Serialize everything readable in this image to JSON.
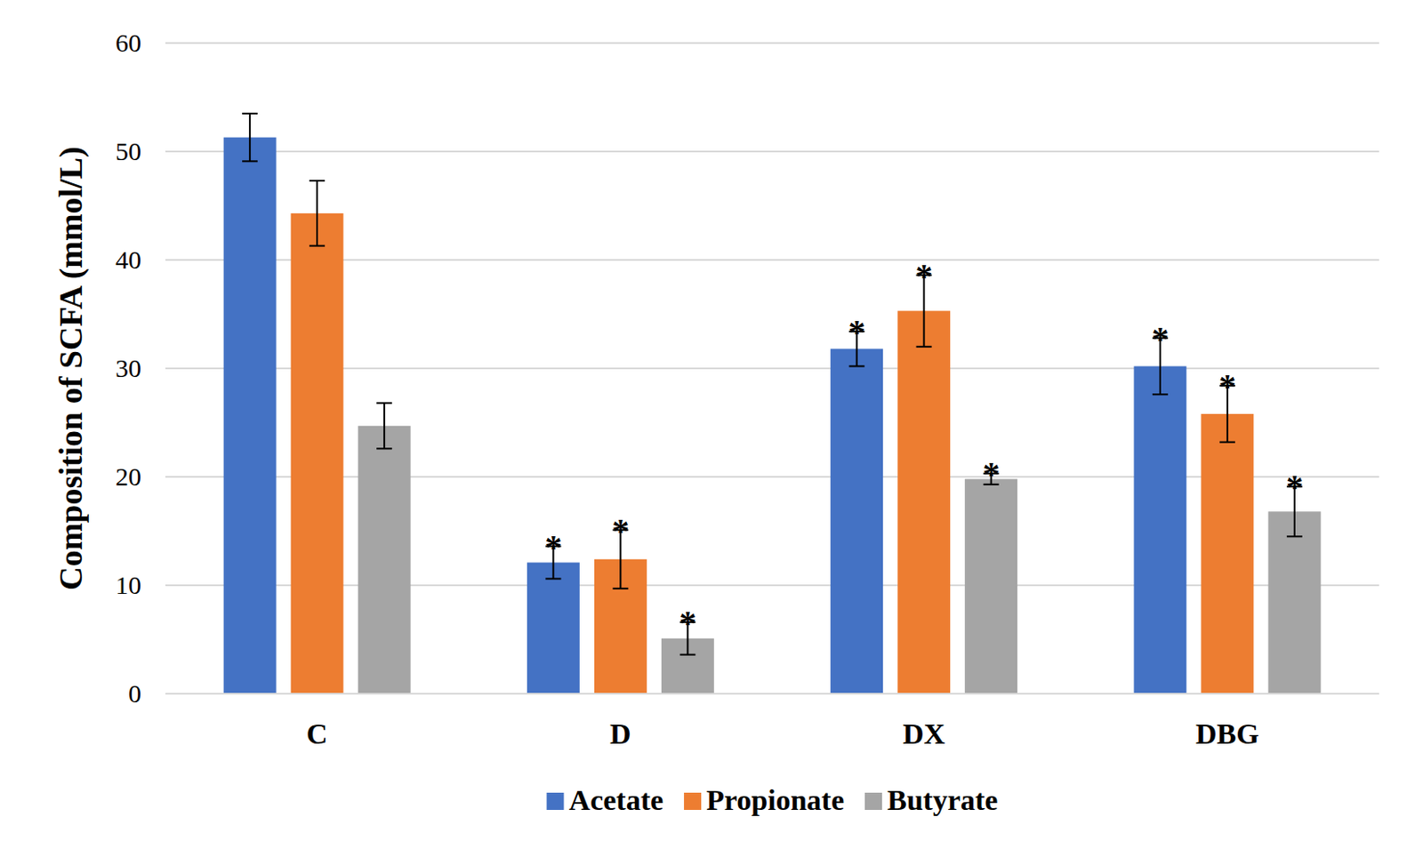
{
  "chart_data": {
    "type": "bar",
    "y_label": "Composition of SCFA (mmol/L)",
    "categories": [
      "C",
      "D",
      "DX",
      "DBG"
    ],
    "series": [
      {
        "name": "Acetate",
        "color": "#4472c4",
        "values": [
          51.3,
          12.1,
          31.8,
          30.2
        ],
        "errors": [
          2.2,
          1.5,
          1.6,
          2.6
        ],
        "annotations": [
          null,
          "*",
          "*",
          "*"
        ]
      },
      {
        "name": "Propionate",
        "color": "#ed7d31",
        "values": [
          44.3,
          12.4,
          35.3,
          25.8
        ],
        "errors": [
          3.0,
          2.7,
          3.3,
          2.6
        ],
        "annotations": [
          null,
          "*",
          "*",
          "*"
        ]
      },
      {
        "name": "Butyrate",
        "color": "#a5a5a5",
        "values": [
          24.7,
          5.1,
          19.8,
          16.8
        ],
        "errors": [
          2.1,
          1.5,
          0.5,
          2.3
        ],
        "annotations": [
          null,
          "*",
          "*",
          "*"
        ]
      }
    ],
    "ylim": [
      0,
      60
    ],
    "yticks": [
      0,
      10,
      20,
      30,
      40,
      50,
      60
    ],
    "grid": true,
    "legend": "bottom"
  }
}
